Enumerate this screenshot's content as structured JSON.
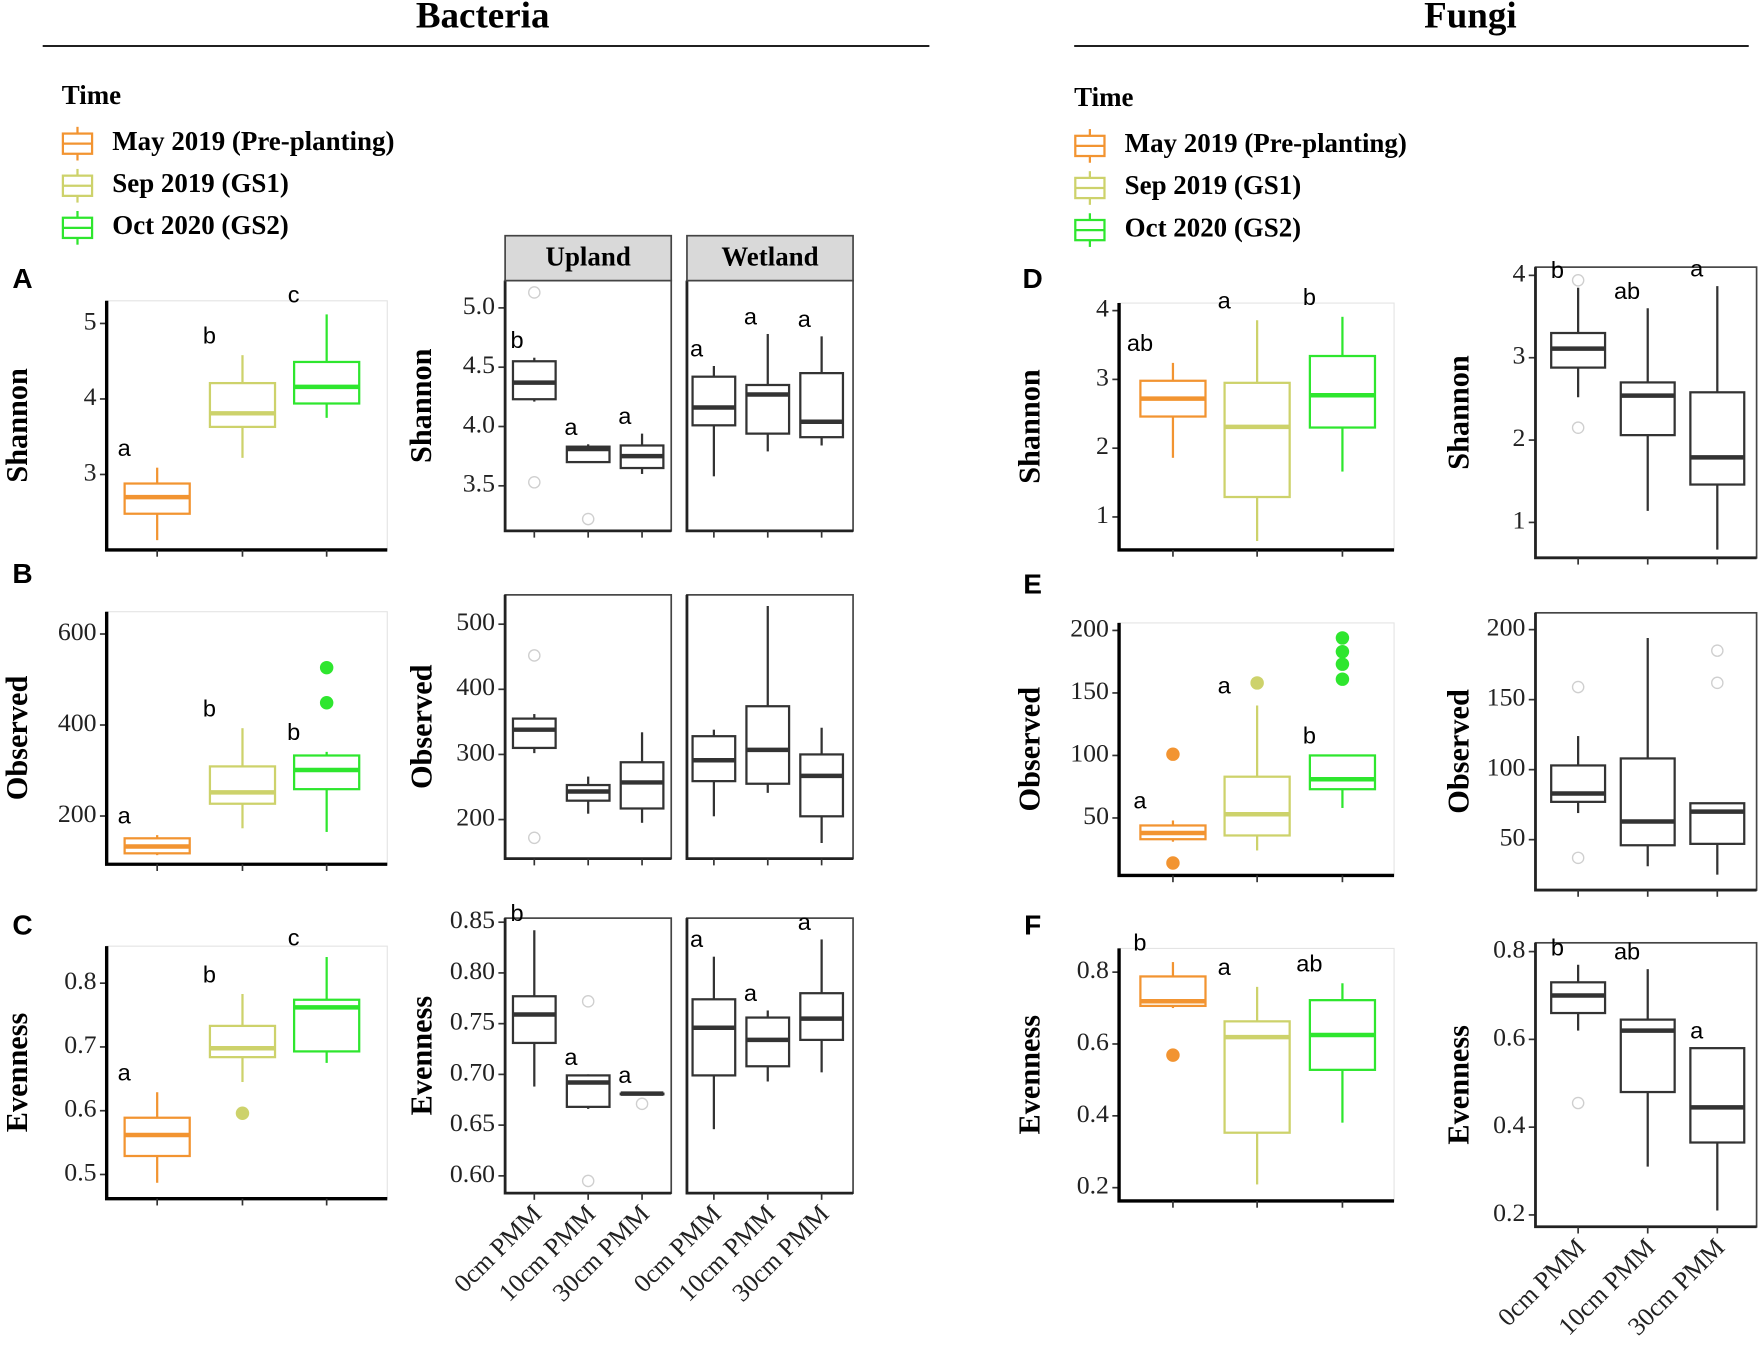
{
  "sections": [
    {
      "title": "Bacteria"
    },
    {
      "title": "Fungi"
    }
  ],
  "legends": [
    {
      "title": "Time",
      "entries": [
        {
          "name": "May 2019 (Pre-planting)",
          "color": "#f29431"
        },
        {
          "name": "Sep 2019 (GS1)",
          "color": "#cdd26b"
        },
        {
          "name": "Oct 2020 (GS2)",
          "color": "#2ee62e"
        }
      ]
    },
    {
      "title": "Time",
      "entries": [
        {
          "name": "May 2019 (Pre-planting)",
          "color": "#f29431"
        },
        {
          "name": "Sep 2019 (GS1)",
          "color": "#cdd26b"
        },
        {
          "name": "Oct 2020 (GS2)",
          "color": "#2ee62e"
        }
      ]
    }
  ],
  "chart_data": [
    {
      "type": "box",
      "panel": "A",
      "ylabel": "Shannon",
      "ylim": [
        2.0,
        5.3
      ],
      "yticks": [
        3,
        4,
        5
      ],
      "facets": [
        {
          "boxes": [
            {
              "low": 2.13,
              "q1": 2.48,
              "median": 2.7,
              "q3": 2.88,
              "high": 3.09,
              "letter": "a",
              "color": "#f29431"
            },
            {
              "low": 3.22,
              "q1": 3.63,
              "median": 3.81,
              "q3": 4.21,
              "high": 4.58,
              "letter": "b",
              "color": "#cdd26b"
            },
            {
              "low": 3.75,
              "q1": 3.94,
              "median": 4.16,
              "q3": 4.49,
              "high": 5.12,
              "letter": "c",
              "color": "#2ee62e"
            }
          ]
        }
      ]
    },
    {
      "type": "box",
      "ylabel": "Shannon",
      "ylim": [
        3.12,
        5.23
      ],
      "yticks": [
        {
          "value": 5,
          "label": "5.0"
        },
        4.5,
        {
          "value": 4,
          "label": "4.0"
        },
        3.5
      ],
      "facets": [
        {
          "name": "Upland",
          "boxes": [
            {
              "low": 4.21,
              "q1": 4.23,
              "median": 4.37,
              "q3": 4.55,
              "high": 4.58,
              "outliers": [
                5.13,
                3.53
              ],
              "letter": "b"
            },
            {
              "low": 3.7,
              "q1": 3.7,
              "median": 3.81,
              "q3": 3.83,
              "high": 3.85,
              "outliers": [
                3.22
              ],
              "letter": "a"
            },
            {
              "low": 3.6,
              "q1": 3.65,
              "median": 3.75,
              "q3": 3.84,
              "high": 3.94,
              "letter": "a"
            }
          ]
        },
        {
          "name": "Wetland",
          "boxes": [
            {
              "low": 3.58,
              "q1": 4.01,
              "median": 4.16,
              "q3": 4.42,
              "high": 4.51,
              "letter": "a"
            },
            {
              "low": 3.79,
              "q1": 3.94,
              "median": 4.27,
              "q3": 4.35,
              "high": 4.78,
              "letter": "a"
            },
            {
              "low": 3.84,
              "q1": 3.91,
              "median": 4.04,
              "q3": 4.45,
              "high": 4.76,
              "letter": "a"
            }
          ]
        }
      ]
    },
    {
      "type": "box",
      "panel": "B",
      "ylabel": "Observed",
      "ylim": [
        94,
        649
      ],
      "yticks": [
        600,
        400,
        200
      ],
      "facets": [
        {
          "boxes": [
            {
              "low": 114,
              "q1": 118,
              "median": 133,
              "q3": 151,
              "high": 158,
              "letter": "a",
              "color": "#f29431"
            },
            {
              "low": 173,
              "q1": 227,
              "median": 252,
              "q3": 309,
              "high": 393,
              "letter": "b",
              "color": "#cdd26b"
            },
            {
              "low": 165,
              "q1": 259,
              "median": 301,
              "q3": 333,
              "high": 341,
              "outliers": [
                526,
                449
              ],
              "letter": "b",
              "color": "#2ee62e"
            }
          ]
        }
      ]
    },
    {
      "type": "box",
      "ylabel": "Observed",
      "ylim": [
        140,
        545
      ],
      "yticks": [
        500,
        400,
        300,
        200
      ],
      "facets": [
        {
          "boxes": [
            {
              "low": 302,
              "q1": 310,
              "median": 338,
              "q3": 355,
              "high": 362,
              "outliers": [
                452,
                172
              ]
            },
            {
              "low": 209,
              "q1": 229,
              "median": 243,
              "q3": 253,
              "high": 266
            },
            {
              "low": 195,
              "q1": 217,
              "median": 257,
              "q3": 288,
              "high": 334
            }
          ]
        },
        {
          "boxes": [
            {
              "low": 205,
              "q1": 259,
              "median": 291,
              "q3": 328,
              "high": 338
            },
            {
              "low": 241,
              "q1": 255,
              "median": 307,
              "q3": 374,
              "high": 528
            },
            {
              "low": 164,
              "q1": 205,
              "median": 267,
              "q3": 300,
              "high": 341
            }
          ]
        }
      ]
    },
    {
      "type": "box",
      "panel": "C",
      "ylabel": "Evenness",
      "ylim": [
        0.462,
        0.858
      ],
      "yticks": [
        0.8,
        0.7,
        0.6,
        0.5
      ],
      "facets": [
        {
          "boxes": [
            {
              "low": 0.487,
              "q1": 0.529,
              "median": 0.562,
              "q3": 0.589,
              "high": 0.629,
              "letter": "a",
              "color": "#f29431"
            },
            {
              "low": 0.645,
              "q1": 0.684,
              "median": 0.698,
              "q3": 0.733,
              "high": 0.783,
              "outliers": [
                0.596
              ],
              "letter": "b",
              "color": "#cdd26b"
            },
            {
              "low": 0.675,
              "q1": 0.693,
              "median": 0.762,
              "q3": 0.774,
              "high": 0.841,
              "letter": "c",
              "color": "#2ee62e"
            }
          ]
        }
      ]
    },
    {
      "type": "box",
      "ylabel": "Evenness",
      "ylim": [
        0.583,
        0.854
      ],
      "yticks": [
        0.85,
        {
          "value": 0.8,
          "label": "0.80"
        },
        0.75,
        {
          "value": 0.7,
          "label": "0.70"
        },
        0.65,
        {
          "value": 0.6,
          "label": "0.60"
        }
      ],
      "facets": [
        {
          "categories": [
            "0cm PMM",
            "10cm PMM",
            "30cm PMM"
          ],
          "boxes": [
            {
              "low": 0.688,
              "q1": 0.731,
              "median": 0.759,
              "q3": 0.777,
              "high": 0.842,
              "letter": "b"
            },
            {
              "low": 0.666,
              "q1": 0.668,
              "median": 0.692,
              "q3": 0.699,
              "high": 0.7,
              "outliers": [
                0.772,
                0.595
              ],
              "letter": "a"
            },
            {
              "low": 0.68,
              "q1": 0.681,
              "median": 0.681,
              "q3": 0.681,
              "high": 0.682,
              "outliers": [
                0.671
              ],
              "letter": "a"
            }
          ]
        },
        {
          "categories": [
            "0cm PMM",
            "10cm PMM",
            "30cm PMM"
          ],
          "boxes": [
            {
              "low": 0.646,
              "q1": 0.699,
              "median": 0.746,
              "q3": 0.774,
              "high": 0.816,
              "letter": "a"
            },
            {
              "low": 0.693,
              "q1": 0.708,
              "median": 0.734,
              "q3": 0.756,
              "high": 0.763,
              "letter": "a"
            },
            {
              "low": 0.702,
              "q1": 0.734,
              "median": 0.755,
              "q3": 0.78,
              "high": 0.833,
              "letter": "a"
            }
          ]
        }
      ]
    },
    {
      "type": "box",
      "panel": "D",
      "ylabel": "Shannon",
      "ylim": [
        0.52,
        4.11
      ],
      "yticks": [
        4,
        3,
        2,
        1
      ],
      "facets": [
        {
          "boxes": [
            {
              "low": 1.86,
              "q1": 2.46,
              "median": 2.72,
              "q3": 2.98,
              "high": 3.24,
              "letter": "ab",
              "color": "#f29431"
            },
            {
              "low": 0.65,
              "q1": 1.29,
              "median": 2.31,
              "q3": 2.95,
              "high": 3.86,
              "letter": "a",
              "color": "#cdd26b"
            },
            {
              "low": 1.66,
              "q1": 2.3,
              "median": 2.77,
              "q3": 3.34,
              "high": 3.91,
              "letter": "b",
              "color": "#2ee62e"
            }
          ]
        }
      ]
    },
    {
      "type": "box",
      "ylabel": "Shannon",
      "ylim": [
        0.57,
        4.1
      ],
      "yticks": [
        4,
        3,
        2,
        1
      ],
      "facets": [
        {
          "boxes": [
            {
              "low": 2.52,
              "q1": 2.88,
              "median": 3.11,
              "q3": 3.3,
              "high": 3.85,
              "outliers": [
                3.94,
                2.15
              ],
              "letter": "b"
            },
            {
              "low": 1.14,
              "q1": 2.06,
              "median": 2.54,
              "q3": 2.7,
              "high": 3.6,
              "letter": "ab"
            },
            {
              "low": 0.67,
              "q1": 1.46,
              "median": 1.79,
              "q3": 2.58,
              "high": 3.87,
              "letter": "a"
            }
          ]
        }
      ]
    },
    {
      "type": "box",
      "panel": "E",
      "ylabel": "Observed",
      "ylim": [
        4,
        206
      ],
      "yticks": [
        200,
        150,
        100,
        50
      ],
      "facets": [
        {
          "boxes": [
            {
              "low": 31,
              "q1": 33,
              "median": 38,
              "q3": 44,
              "high": 48,
              "outliers": [
                101,
                14
              ],
              "letter": "a",
              "color": "#f29431"
            },
            {
              "low": 24,
              "q1": 36,
              "median": 53,
              "q3": 83,
              "high": 140,
              "outliers": [
                158
              ],
              "letter": "a",
              "color": "#cdd26b"
            },
            {
              "low": 58,
              "q1": 73,
              "median": 81,
              "q3": 100,
              "high": 100,
              "outliers": [
                194,
                183,
                173,
                161
              ],
              "letter": "b",
              "color": "#2ee62e"
            }
          ]
        }
      ]
    },
    {
      "type": "box",
      "ylabel": "Observed",
      "ylim": [
        14,
        212
      ],
      "yticks": [
        200,
        150,
        100,
        50
      ],
      "facets": [
        {
          "boxes": [
            {
              "low": 69,
              "q1": 77,
              "median": 83,
              "q3": 103,
              "high": 124,
              "outliers": [
                159,
                37
              ]
            },
            {
              "low": 31,
              "q1": 46,
              "median": 63,
              "q3": 108,
              "high": 194
            },
            {
              "low": 25,
              "q1": 47,
              "median": 70,
              "q3": 76,
              "high": 76,
              "outliers": [
                185,
                162
              ]
            }
          ]
        }
      ]
    },
    {
      "type": "box",
      "panel": "F",
      "ylabel": "Evenness",
      "ylim": [
        0.163,
        0.866
      ],
      "yticks": [
        0.8,
        0.6,
        0.4,
        0.2
      ],
      "facets": [
        {
          "boxes": [
            {
              "low": 0.7,
              "q1": 0.706,
              "median": 0.719,
              "q3": 0.788,
              "high": 0.828,
              "outliers": [
                0.569
              ],
              "letter": "b",
              "color": "#f29431"
            },
            {
              "low": 0.209,
              "q1": 0.353,
              "median": 0.619,
              "q3": 0.663,
              "high": 0.759,
              "letter": "a",
              "color": "#cdd26b"
            },
            {
              "low": 0.381,
              "q1": 0.528,
              "median": 0.625,
              "q3": 0.722,
              "high": 0.769,
              "letter": "ab",
              "color": "#2ee62e"
            }
          ]
        }
      ]
    },
    {
      "type": "box",
      "ylabel": "Evenness",
      "ylim": [
        0.173,
        0.82
      ],
      "yticks": [
        0.8,
        0.6,
        0.4,
        0.2
      ],
      "facets": [
        {
          "categories": [
            "0cm PMM",
            "10cm PMM",
            "30cm PMM"
          ],
          "boxes": [
            {
              "low": 0.62,
              "q1": 0.66,
              "median": 0.7,
              "q3": 0.73,
              "high": 0.77,
              "outliers": [
                0.455
              ],
              "letter": "b"
            },
            {
              "low": 0.31,
              "q1": 0.48,
              "median": 0.62,
              "q3": 0.645,
              "high": 0.76,
              "letter": "ab"
            },
            {
              "low": 0.21,
              "q1": 0.365,
              "median": 0.445,
              "q3": 0.58,
              "high": 0.58,
              "letter": "a"
            }
          ]
        }
      ]
    }
  ]
}
